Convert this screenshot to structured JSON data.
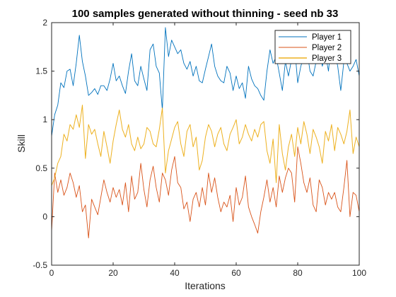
{
  "chart_data": {
    "type": "line",
    "title": "100 samples generated without thinning - seed nb 33",
    "xlabel": "Iterations",
    "ylabel": "Skill",
    "xlim": [
      0,
      100
    ],
    "ylim": [
      -0.5,
      2
    ],
    "xticks": [
      0,
      20,
      40,
      60,
      80,
      100
    ],
    "xtick_labels": [
      "0",
      "20",
      "40",
      "60",
      "80",
      "100"
    ],
    "yticks": [
      -0.5,
      0,
      0.5,
      1,
      1.5,
      2
    ],
    "ytick_labels": [
      "-0.5",
      "0",
      "0.5",
      "1",
      "1.5",
      "2"
    ],
    "grid": false,
    "legend_position": "top-right",
    "series": [
      {
        "name": "Player 1",
        "color": "#0072BD",
        "x": [
          0,
          1,
          2,
          3,
          4,
          5,
          6,
          7,
          8,
          9,
          10,
          11,
          12,
          13,
          14,
          15,
          16,
          17,
          18,
          19,
          20,
          21,
          22,
          23,
          24,
          25,
          26,
          27,
          28,
          29,
          30,
          31,
          32,
          33,
          34,
          35,
          36,
          37,
          38,
          39,
          40,
          41,
          42,
          43,
          44,
          45,
          46,
          47,
          48,
          49,
          50,
          51,
          52,
          53,
          54,
          55,
          56,
          57,
          58,
          59,
          60,
          61,
          62,
          63,
          64,
          65,
          66,
          67,
          68,
          69,
          70,
          71,
          72,
          73,
          74,
          75,
          76,
          77,
          78,
          79,
          80,
          81,
          82,
          83,
          84,
          85,
          86,
          87,
          88,
          89,
          90,
          91,
          92,
          93,
          94,
          95,
          96,
          97,
          98,
          99,
          100
        ],
        "y": [
          0.83,
          1.05,
          1.15,
          1.38,
          1.33,
          1.5,
          1.52,
          1.35,
          1.58,
          1.87,
          1.6,
          1.45,
          1.25,
          1.28,
          1.32,
          1.26,
          1.35,
          1.35,
          1.3,
          1.42,
          1.58,
          1.4,
          1.45,
          1.35,
          1.27,
          1.5,
          1.68,
          1.4,
          1.35,
          1.55,
          1.42,
          1.3,
          1.72,
          1.78,
          1.55,
          1.48,
          1.1,
          1.95,
          1.65,
          1.82,
          1.75,
          1.68,
          1.72,
          1.58,
          1.52,
          1.6,
          1.45,
          1.55,
          1.4,
          1.38,
          1.52,
          1.65,
          1.78,
          1.55,
          1.45,
          1.4,
          1.38,
          1.55,
          1.48,
          1.3,
          1.45,
          1.32,
          1.38,
          1.22,
          1.55,
          1.42,
          1.35,
          1.32,
          1.25,
          1.2,
          1.5,
          1.72,
          1.58,
          1.65,
          1.48,
          1.3,
          1.6,
          1.45,
          1.62,
          1.75,
          1.38,
          1.55,
          1.65,
          1.72,
          1.5,
          1.45,
          1.6,
          1.75,
          1.55,
          1.68,
          1.5,
          1.82,
          1.7,
          1.55,
          1.3,
          1.6,
          1.58,
          1.5,
          1.55,
          1.62,
          1.45
        ]
      },
      {
        "name": "Player 2",
        "color": "#D95319",
        "x": [
          0,
          1,
          2,
          3,
          4,
          5,
          6,
          7,
          8,
          9,
          10,
          11,
          12,
          13,
          14,
          15,
          16,
          17,
          18,
          19,
          20,
          21,
          22,
          23,
          24,
          25,
          26,
          27,
          28,
          29,
          30,
          31,
          32,
          33,
          34,
          35,
          36,
          37,
          38,
          39,
          40,
          41,
          42,
          43,
          44,
          45,
          46,
          47,
          48,
          49,
          50,
          51,
          52,
          53,
          54,
          55,
          56,
          57,
          58,
          59,
          60,
          61,
          62,
          63,
          64,
          65,
          66,
          67,
          68,
          69,
          70,
          71,
          72,
          73,
          74,
          75,
          76,
          77,
          78,
          79,
          80,
          81,
          82,
          83,
          84,
          85,
          86,
          87,
          88,
          89,
          90,
          91,
          92,
          93,
          94,
          95,
          96,
          97,
          98,
          99,
          100
        ],
        "y": [
          -0.15,
          0.45,
          0.25,
          0.38,
          0.22,
          0.3,
          0.45,
          0.35,
          0.2,
          0.32,
          0.05,
          0.12,
          -0.22,
          0.18,
          0.1,
          0.02,
          0.2,
          0.38,
          0.25,
          0.15,
          0.3,
          0.2,
          0.28,
          0.12,
          0.35,
          0.05,
          0.42,
          0.18,
          0.25,
          0.55,
          0.28,
          0.1,
          0.38,
          0.52,
          0.3,
          0.15,
          0.45,
          0.38,
          0.22,
          0.48,
          0.62,
          0.35,
          0.3,
          0.08,
          0.15,
          -0.05,
          0.18,
          0.25,
          0.1,
          0.3,
          0.12,
          0.45,
          0.25,
          0.4,
          0.2,
          0.05,
          0.15,
          0.1,
          0.22,
          -0.05,
          0.3,
          0.12,
          0.2,
          0.42,
          0.1,
          0.0,
          -0.08,
          -0.17,
          0.05,
          0.2,
          0.38,
          0.15,
          0.3,
          0.1,
          0.42,
          0.25,
          0.4,
          0.5,
          0.45,
          0.15,
          0.72,
          0.55,
          0.35,
          0.25,
          0.4,
          0.12,
          0.05,
          0.38,
          0.3,
          0.12,
          0.25,
          0.18,
          0.25,
          0.1,
          0.05,
          0.3,
          0.58,
          0.0,
          0.25,
          0.22,
          0.05
        ]
      },
      {
        "name": "Player 3",
        "color": "#EDB120",
        "x": [
          0,
          1,
          2,
          3,
          4,
          5,
          6,
          7,
          8,
          9,
          10,
          11,
          12,
          13,
          14,
          15,
          16,
          17,
          18,
          19,
          20,
          21,
          22,
          23,
          24,
          25,
          26,
          27,
          28,
          29,
          30,
          31,
          32,
          33,
          34,
          35,
          36,
          37,
          38,
          39,
          40,
          41,
          42,
          43,
          44,
          45,
          46,
          47,
          48,
          49,
          50,
          51,
          52,
          53,
          54,
          55,
          56,
          57,
          58,
          59,
          60,
          61,
          62,
          63,
          64,
          65,
          66,
          67,
          68,
          69,
          70,
          71,
          72,
          73,
          74,
          75,
          76,
          77,
          78,
          79,
          80,
          81,
          82,
          83,
          84,
          85,
          86,
          87,
          88,
          89,
          90,
          91,
          92,
          93,
          94,
          95,
          96,
          97,
          98,
          99,
          100
        ],
        "y": [
          0.32,
          0.4,
          0.55,
          0.62,
          0.85,
          0.78,
          0.95,
          0.9,
          1.05,
          0.92,
          1.15,
          0.6,
          0.95,
          0.85,
          0.9,
          0.75,
          0.62,
          0.88,
          0.72,
          0.55,
          0.78,
          0.95,
          1.1,
          0.9,
          0.82,
          0.95,
          0.75,
          0.68,
          0.82,
          0.7,
          0.75,
          0.92,
          0.88,
          0.75,
          0.72,
          0.9,
          1.12,
          0.45,
          0.68,
          0.8,
          0.92,
          0.98,
          0.75,
          0.62,
          0.88,
          0.95,
          0.72,
          0.82,
          0.48,
          0.58,
          0.82,
          0.95,
          0.88,
          0.72,
          0.85,
          0.92,
          0.75,
          0.68,
          0.85,
          0.92,
          1.0,
          0.75,
          0.82,
          0.95,
          0.85,
          0.78,
          0.9,
          0.82,
          0.95,
          0.98,
          0.68,
          0.55,
          0.8,
          0.35,
          0.95,
          0.65,
          0.48,
          0.72,
          0.85,
          0.62,
          0.92,
          0.75,
          0.98,
          0.85,
          0.65,
          0.9,
          0.82,
          0.72,
          0.55,
          0.88,
          0.78,
          0.95,
          0.68,
          0.92,
          0.85,
          0.75,
          0.88,
          1.1,
          0.65,
          0.82,
          0.72
        ]
      }
    ]
  }
}
